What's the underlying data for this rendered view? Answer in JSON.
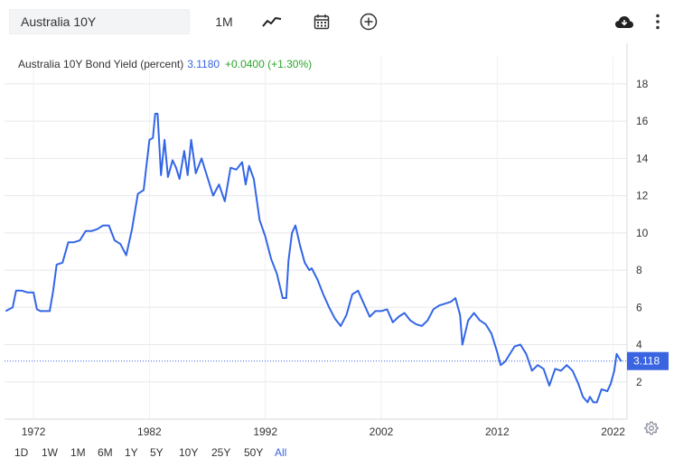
{
  "toolbar": {
    "symbol": "Australia 10Y",
    "interval": "1M"
  },
  "legend": {
    "name": "Australia 10Y Bond Yield (percent)",
    "value": "3.1180",
    "change": "+0.0400 (+1.30%)"
  },
  "price_tag": "3.118",
  "ranges": [
    "1D",
    "1W",
    "1M",
    "6M",
    "1Y",
    "5Y",
    "10Y",
    "25Y",
    "50Y",
    "All"
  ],
  "active_range": "All",
  "colors": {
    "line": "#3366e6",
    "accent": "#3a64e0",
    "positive": "#2aa52a"
  },
  "icons": [
    "line-chart-icon",
    "calendar-icon",
    "add-circle-icon",
    "cloud-download-icon",
    "more-vertical-icon",
    "settings-gear-icon"
  ],
  "chart_data": {
    "type": "line",
    "title": "Australia 10Y Bond Yield (percent)",
    "xlabel": "",
    "ylabel": "",
    "x_ticks": [
      "1972",
      "1982",
      "1992",
      "2002",
      "2012",
      "2022"
    ],
    "y_ticks": [
      2,
      4,
      6,
      8,
      10,
      12,
      14,
      16,
      18
    ],
    "xlim": [
      1969.5,
      2023.2
    ],
    "ylim": [
      0,
      19.5
    ],
    "grid": true,
    "current_value": 3.118,
    "series": [
      {
        "name": "",
        "x": [
          1969.6,
          1970.2,
          1970.5,
          1971.0,
          1971.5,
          1972.0,
          1972.3,
          1972.6,
          1973.0,
          1973.4,
          1973.7,
          1974.0,
          1974.5,
          1975.0,
          1975.5,
          1976.0,
          1976.5,
          1977.0,
          1977.5,
          1978.0,
          1978.5,
          1979.0,
          1979.5,
          1980.0,
          1980.5,
          1981.0,
          1981.5,
          1982.0,
          1982.3,
          1982.5,
          1982.7,
          1983.0,
          1983.3,
          1983.6,
          1984.0,
          1984.3,
          1984.6,
          1985.0,
          1985.3,
          1985.6,
          1986.0,
          1986.5,
          1987.0,
          1987.5,
          1988.0,
          1988.5,
          1989.0,
          1989.5,
          1990.0,
          1990.3,
          1990.6,
          1991.0,
          1991.5,
          1992.0,
          1992.5,
          1993.0,
          1993.5,
          1993.8,
          1994.0,
          1994.3,
          1994.6,
          1995.0,
          1995.4,
          1995.8,
          1996.0,
          1996.5,
          1997.0,
          1997.5,
          1998.0,
          1998.5,
          1999.0,
          1999.5,
          2000.0,
          2000.5,
          2001.0,
          2001.5,
          2002.0,
          2002.5,
          2003.0,
          2003.5,
          2004.0,
          2004.5,
          2005.0,
          2005.5,
          2006.0,
          2006.5,
          2007.0,
          2007.5,
          2008.0,
          2008.4,
          2008.8,
          2009.0,
          2009.5,
          2010.0,
          2010.5,
          2011.0,
          2011.5,
          2012.0,
          2012.3,
          2012.7,
          2013.0,
          2013.5,
          2014.0,
          2014.5,
          2015.0,
          2015.5,
          2016.0,
          2016.5,
          2017.0,
          2017.5,
          2018.0,
          2018.5,
          2019.0,
          2019.4,
          2019.8,
          2020.0,
          2020.3,
          2020.6,
          2021.0,
          2021.5,
          2021.8,
          2022.1,
          2022.3,
          2022.5,
          2022.7
        ],
        "y": [
          5.8,
          6.0,
          6.9,
          6.9,
          6.8,
          6.8,
          5.9,
          5.8,
          5.8,
          5.8,
          6.9,
          8.3,
          8.4,
          9.5,
          9.5,
          9.6,
          10.1,
          10.1,
          10.2,
          10.4,
          10.4,
          9.6,
          9.4,
          8.8,
          10.2,
          12.1,
          12.3,
          15.0,
          15.1,
          16.4,
          16.4,
          13.1,
          15.0,
          13.0,
          13.9,
          13.5,
          12.9,
          14.4,
          13.1,
          15.0,
          13.2,
          14.0,
          13.0,
          12.0,
          12.6,
          11.7,
          13.5,
          13.4,
          13.8,
          12.6,
          13.6,
          12.9,
          10.7,
          9.8,
          8.6,
          7.8,
          6.5,
          6.5,
          8.5,
          10.0,
          10.4,
          9.3,
          8.4,
          8.0,
          8.1,
          7.5,
          6.7,
          6.0,
          5.4,
          5.0,
          5.6,
          6.7,
          6.9,
          6.2,
          5.5,
          5.8,
          5.8,
          5.9,
          5.2,
          5.5,
          5.7,
          5.3,
          5.1,
          5.0,
          5.3,
          5.9,
          6.1,
          6.2,
          6.3,
          6.5,
          5.6,
          4.0,
          5.3,
          5.7,
          5.3,
          5.1,
          4.6,
          3.6,
          2.9,
          3.1,
          3.4,
          3.9,
          4.0,
          3.5,
          2.6,
          2.9,
          2.7,
          1.8,
          2.7,
          2.6,
          2.9,
          2.6,
          1.9,
          1.2,
          0.9,
          1.2,
          0.9,
          0.9,
          1.6,
          1.5,
          1.9,
          2.6,
          3.5,
          3.3,
          3.1
        ]
      }
    ]
  }
}
